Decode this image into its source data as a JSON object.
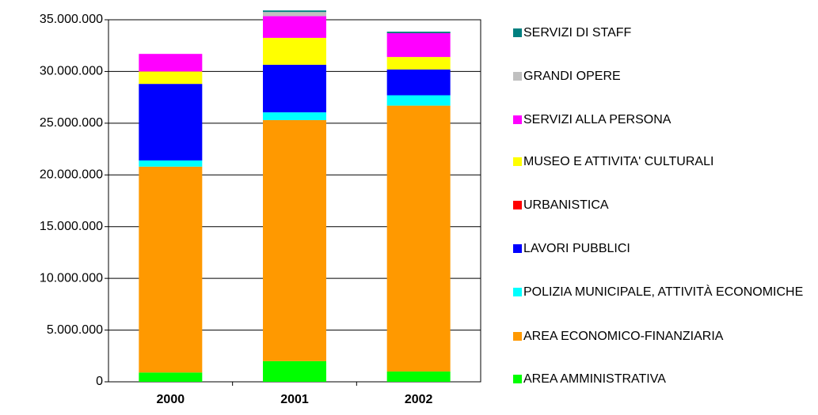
{
  "chart_data": {
    "type": "stacked_bar",
    "categories": [
      "2000",
      "2001",
      "2002"
    ],
    "series": [
      {
        "name": "AREA AMMINISTRATIVA",
        "color": "#00ff00",
        "values": [
          900000,
          2000000,
          1000000
        ]
      },
      {
        "name": "AREA ECONOMICO-FINANZIARIA",
        "color": "#ff9900",
        "values": [
          19900000,
          23300000,
          25700000
        ]
      },
      {
        "name": "POLIZIA MUNICIPALE, ATTIVITÀ ECONOMICHE",
        "color": "#00ffff",
        "values": [
          600000,
          750000,
          1000000
        ]
      },
      {
        "name": "LAVORI PUBBLICI",
        "color": "#0000ff",
        "values": [
          7400000,
          4600000,
          2500000
        ]
      },
      {
        "name": "URBANISTICA",
        "color": "#ff0000",
        "values": [
          0,
          0,
          0
        ]
      },
      {
        "name": "MUSEO E ATTIVITA' CULTURALI",
        "color": "#ffff00",
        "values": [
          1200000,
          2600000,
          1200000
        ]
      },
      {
        "name": "SERVIZI ALLA PERSONA",
        "color": "#ff00ff",
        "values": [
          1700000,
          2100000,
          2300000
        ]
      },
      {
        "name": "GRANDI OPERE",
        "color": "#c0c0c0",
        "values": [
          0,
          400000,
          0
        ]
      },
      {
        "name": "SERVIZI DI STAFF",
        "color": "#008080",
        "values": [
          0,
          150000,
          150000
        ]
      }
    ],
    "ylim": [
      0,
      35000000
    ],
    "yticks": [
      0,
      {
        "value": 5000000,
        "label": "5.000.000"
      },
      {
        "value": 10000000,
        "label": "10.000.000"
      },
      {
        "value": 15000000,
        "label": "15.000.000"
      },
      {
        "value": 20000000,
        "label": "20.000.000"
      },
      {
        "value": 25000000,
        "label": "25.000.000"
      },
      {
        "value": 30000000,
        "label": "30.000.000"
      },
      {
        "value": 35000000,
        "label": "35.000.000"
      }
    ],
    "grid": true,
    "legend": "right"
  }
}
